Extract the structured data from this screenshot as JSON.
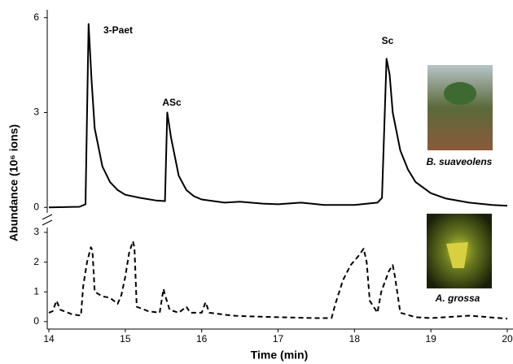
{
  "chart_data": [
    {
      "type": "line",
      "ylabel": "Abundance (10⁶ ions)",
      "annotations": [
        "3-Paet",
        "ASc",
        "Sc",
        "B. suaveolens"
      ],
      "x": [
        14.0,
        14.4,
        14.48,
        14.52,
        14.56,
        14.6,
        14.7,
        14.8,
        14.9,
        15.0,
        15.2,
        15.4,
        15.52,
        15.55,
        15.6,
        15.7,
        15.8,
        15.9,
        16.0,
        16.3,
        16.5,
        16.8,
        17.0,
        17.3,
        17.6,
        18.0,
        18.3,
        18.36,
        18.42,
        18.46,
        18.5,
        18.6,
        18.7,
        18.8,
        19.0,
        19.2,
        19.5,
        19.8,
        20.0
      ],
      "series": [
        {
          "color": "#000000",
          "line_style": "solid",
          "values": [
            0.0,
            0.02,
            0.1,
            5.8,
            4.0,
            2.5,
            1.3,
            0.8,
            0.55,
            0.4,
            0.3,
            0.22,
            0.2,
            3.0,
            2.2,
            1.0,
            0.55,
            0.35,
            0.25,
            0.15,
            0.18,
            0.12,
            0.1,
            0.15,
            0.08,
            0.08,
            0.15,
            0.3,
            4.7,
            4.2,
            3.0,
            1.8,
            1.2,
            0.8,
            0.45,
            0.28,
            0.15,
            0.08,
            0.05
          ]
        }
      ],
      "xlim": [
        14,
        20
      ],
      "ylim": [
        -0.25,
        6.25
      ],
      "yticks": [
        0,
        3,
        6
      ]
    },
    {
      "type": "line",
      "xlabel": "Time (min)",
      "annotations": [
        "A. grossa"
      ],
      "x": [
        14.0,
        14.05,
        14.1,
        14.15,
        14.3,
        14.42,
        14.45,
        14.5,
        14.55,
        14.57,
        14.6,
        14.7,
        14.8,
        14.9,
        14.95,
        15.0,
        15.05,
        15.1,
        15.12,
        15.15,
        15.3,
        15.45,
        15.5,
        15.52,
        15.58,
        15.7,
        15.8,
        15.85,
        16.0,
        16.05,
        16.1,
        16.4,
        16.6,
        17.0,
        17.5,
        17.7,
        17.75,
        17.85,
        17.95,
        18.05,
        18.12,
        18.16,
        18.2,
        18.3,
        18.35,
        18.45,
        18.5,
        18.53,
        18.6,
        18.8,
        19.0,
        19.5,
        20.0
      ],
      "series": [
        {
          "color": "#000000",
          "line_style": "dashed",
          "values": [
            0.3,
            0.35,
            0.7,
            0.4,
            0.25,
            0.2,
            1.2,
            2.0,
            2.5,
            2.4,
            1.0,
            0.85,
            0.8,
            0.6,
            0.9,
            1.5,
            2.3,
            2.7,
            2.5,
            0.5,
            0.35,
            0.3,
            1.1,
            0.9,
            0.4,
            0.3,
            0.5,
            0.3,
            0.3,
            0.65,
            0.3,
            0.2,
            0.18,
            0.15,
            0.12,
            0.12,
            0.6,
            1.4,
            1.9,
            2.2,
            2.45,
            2.0,
            0.7,
            0.3,
            1.0,
            1.7,
            1.9,
            1.5,
            0.3,
            0.15,
            0.12,
            0.2,
            0.1
          ]
        }
      ],
      "xlim": [
        14,
        20
      ],
      "ylim": [
        -0.25,
        3.3
      ],
      "yticks": [
        0,
        1,
        2,
        3
      ],
      "xticks": [
        14,
        15,
        16,
        17,
        18,
        19,
        20
      ]
    }
  ]
}
